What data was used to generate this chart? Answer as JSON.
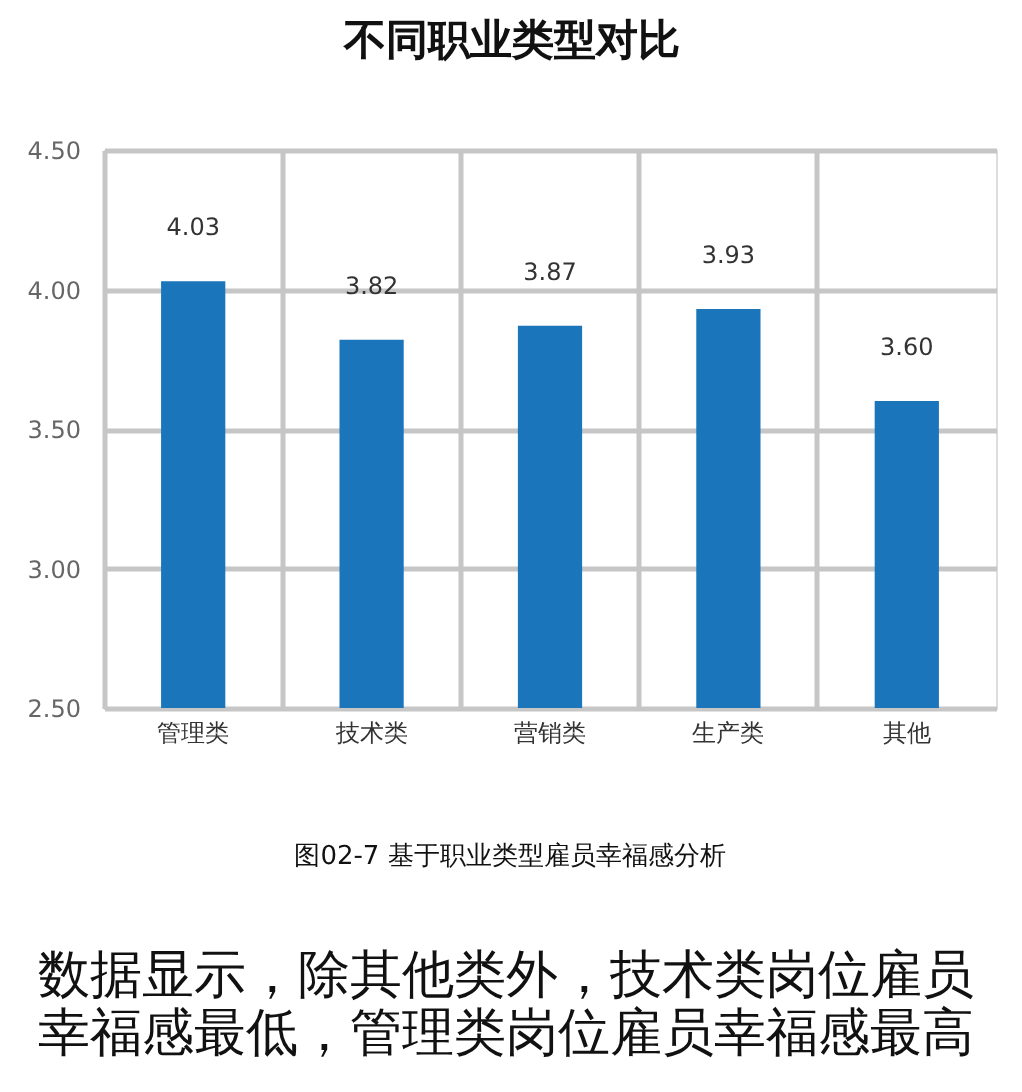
{
  "chart_data": {
    "type": "bar",
    "title": "不同职业类型对比",
    "categories": [
      "管理类",
      "技术类",
      "营销类",
      "生产类",
      "其他"
    ],
    "values": [
      4.03,
      3.82,
      3.87,
      3.93,
      3.6
    ],
    "value_labels": [
      "4.03",
      "3.82",
      "3.87",
      "3.93",
      "3.60"
    ],
    "color": "#1a75bb",
    "ylim": [
      2.5,
      4.5
    ],
    "yticks": [
      {
        "value": 2.5,
        "label": "2.50"
      },
      {
        "value": 3,
        "label": "3.00"
      },
      {
        "value": 3.5,
        "label": "3.50"
      },
      {
        "value": 4,
        "label": "4.00"
      },
      {
        "value": 4.5,
        "label": "4.50"
      }
    ],
    "grid": true,
    "annotations": [
      "图02-7  基于职业类型雇员幸福感分析",
      "数据显示，除其他类外，技术类岗位雇员幸福感最低，管理类岗位雇员幸福感最高"
    ]
  }
}
